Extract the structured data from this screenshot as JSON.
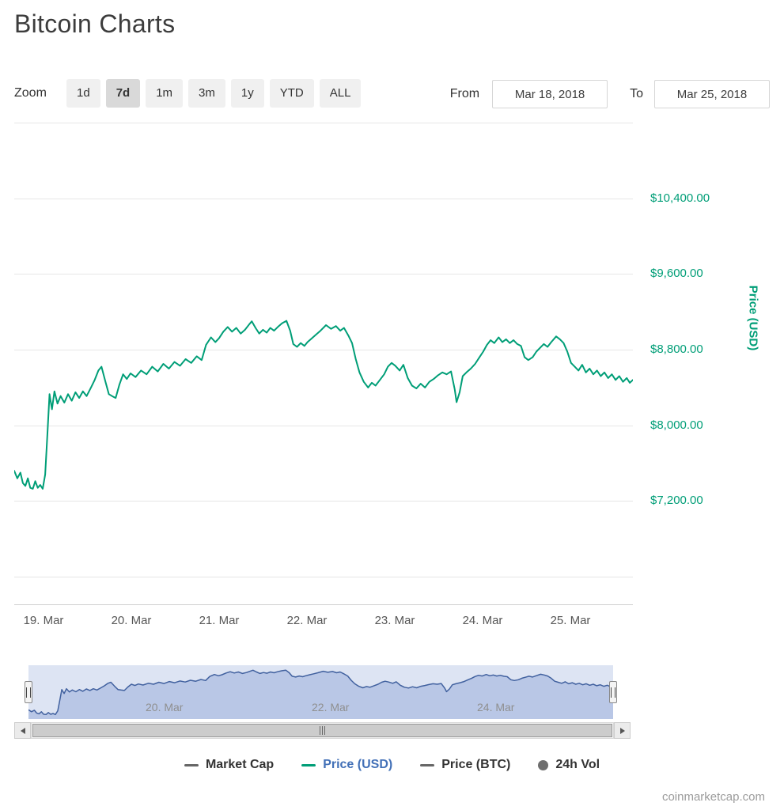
{
  "title": "Bitcoin Charts",
  "range_selector": {
    "zoom_label": "Zoom",
    "buttons": [
      {
        "label": "1d",
        "active": false
      },
      {
        "label": "7d",
        "active": true
      },
      {
        "label": "1m",
        "active": false
      },
      {
        "label": "3m",
        "active": false
      },
      {
        "label": "1y",
        "active": false
      },
      {
        "label": "YTD",
        "active": false
      },
      {
        "label": "ALL",
        "active": false
      }
    ],
    "from_label": "From",
    "from_value": "Mar 18, 2018",
    "to_label": "To",
    "to_value": "Mar 25, 2018"
  },
  "legend": {
    "items": [
      {
        "label": "Market Cap",
        "symbol": "dash",
        "color": "#666666",
        "text_color": "#333333"
      },
      {
        "label": "Price (USD)",
        "symbol": "dash",
        "color": "#009E77",
        "text_color": "#4270b7"
      },
      {
        "label": "Price (BTC)",
        "symbol": "dash",
        "color": "#666666",
        "text_color": "#333333"
      },
      {
        "label": "24h Vol",
        "symbol": "circle",
        "color": "#6e6e6e",
        "text_color": "#333333"
      }
    ]
  },
  "watermark": "coinmarketcap.com",
  "chart_data": {
    "type": "line",
    "title": "Bitcoin Charts",
    "ylabel": "Price (USD)",
    "xlabel": "",
    "legend_position": "bottom",
    "grid": "horizontal",
    "ylim": [
      6100,
      11200
    ],
    "grid_values": [
      6400,
      7200,
      8000,
      8800,
      9600,
      10400,
      11200
    ],
    "yticks": [
      {
        "value": 7200,
        "label": "$7,200.00"
      },
      {
        "value": 8000,
        "label": "$8,000.00"
      },
      {
        "value": 8800,
        "label": "$8,800.00"
      },
      {
        "value": 9600,
        "label": "$9,600.00"
      },
      {
        "value": 10400,
        "label": "$10,400.00"
      }
    ],
    "xticks": [
      {
        "pos": 0.047,
        "label": "19. Mar"
      },
      {
        "pos": 0.189,
        "label": "20. Mar"
      },
      {
        "pos": 0.331,
        "label": "21. Mar"
      },
      {
        "pos": 0.473,
        "label": "22. Mar"
      },
      {
        "pos": 0.615,
        "label": "23. Mar"
      },
      {
        "pos": 0.757,
        "label": "24. Mar"
      },
      {
        "pos": 0.899,
        "label": "25. Mar"
      }
    ],
    "series": [
      {
        "name": "Price (USD)",
        "color": "#009E77",
        "points": [
          [
            0.0,
            7520
          ],
          [
            0.005,
            7440
          ],
          [
            0.01,
            7500
          ],
          [
            0.014,
            7390
          ],
          [
            0.018,
            7360
          ],
          [
            0.022,
            7440
          ],
          [
            0.026,
            7340
          ],
          [
            0.03,
            7330
          ],
          [
            0.034,
            7410
          ],
          [
            0.038,
            7340
          ],
          [
            0.042,
            7370
          ],
          [
            0.046,
            7330
          ],
          [
            0.05,
            7480
          ],
          [
            0.054,
            7950
          ],
          [
            0.057,
            8330
          ],
          [
            0.061,
            8170
          ],
          [
            0.065,
            8360
          ],
          [
            0.07,
            8230
          ],
          [
            0.075,
            8310
          ],
          [
            0.081,
            8240
          ],
          [
            0.087,
            8330
          ],
          [
            0.093,
            8260
          ],
          [
            0.099,
            8350
          ],
          [
            0.105,
            8290
          ],
          [
            0.111,
            8360
          ],
          [
            0.117,
            8310
          ],
          [
            0.124,
            8400
          ],
          [
            0.13,
            8480
          ],
          [
            0.136,
            8580
          ],
          [
            0.141,
            8620
          ],
          [
            0.147,
            8470
          ],
          [
            0.153,
            8330
          ],
          [
            0.158,
            8310
          ],
          [
            0.164,
            8290
          ],
          [
            0.17,
            8430
          ],
          [
            0.176,
            8540
          ],
          [
            0.182,
            8490
          ],
          [
            0.188,
            8550
          ],
          [
            0.196,
            8510
          ],
          [
            0.205,
            8580
          ],
          [
            0.214,
            8540
          ],
          [
            0.223,
            8620
          ],
          [
            0.232,
            8570
          ],
          [
            0.241,
            8650
          ],
          [
            0.25,
            8600
          ],
          [
            0.259,
            8670
          ],
          [
            0.268,
            8630
          ],
          [
            0.277,
            8700
          ],
          [
            0.286,
            8660
          ],
          [
            0.295,
            8730
          ],
          [
            0.303,
            8690
          ],
          [
            0.31,
            8850
          ],
          [
            0.318,
            8930
          ],
          [
            0.325,
            8880
          ],
          [
            0.331,
            8920
          ],
          [
            0.338,
            8990
          ],
          [
            0.345,
            9040
          ],
          [
            0.352,
            8990
          ],
          [
            0.359,
            9030
          ],
          [
            0.366,
            8970
          ],
          [
            0.373,
            9010
          ],
          [
            0.38,
            9070
          ],
          [
            0.384,
            9100
          ],
          [
            0.39,
            9030
          ],
          [
            0.396,
            8970
          ],
          [
            0.402,
            9010
          ],
          [
            0.408,
            8980
          ],
          [
            0.414,
            9030
          ],
          [
            0.42,
            9000
          ],
          [
            0.426,
            9040
          ],
          [
            0.433,
            9080
          ],
          [
            0.44,
            9105
          ],
          [
            0.446,
            9000
          ],
          [
            0.451,
            8860
          ],
          [
            0.457,
            8830
          ],
          [
            0.463,
            8870
          ],
          [
            0.469,
            8840
          ],
          [
            0.474,
            8880
          ],
          [
            0.481,
            8920
          ],
          [
            0.488,
            8960
          ],
          [
            0.495,
            9000
          ],
          [
            0.504,
            9060
          ],
          [
            0.512,
            9020
          ],
          [
            0.52,
            9050
          ],
          [
            0.527,
            9000
          ],
          [
            0.533,
            9030
          ],
          [
            0.54,
            8950
          ],
          [
            0.546,
            8870
          ],
          [
            0.552,
            8700
          ],
          [
            0.558,
            8560
          ],
          [
            0.565,
            8460
          ],
          [
            0.572,
            8400
          ],
          [
            0.578,
            8450
          ],
          [
            0.584,
            8420
          ],
          [
            0.591,
            8480
          ],
          [
            0.598,
            8540
          ],
          [
            0.604,
            8620
          ],
          [
            0.61,
            8660
          ],
          [
            0.616,
            8630
          ],
          [
            0.623,
            8580
          ],
          [
            0.629,
            8640
          ],
          [
            0.636,
            8500
          ],
          [
            0.643,
            8420
          ],
          [
            0.65,
            8390
          ],
          [
            0.657,
            8440
          ],
          [
            0.664,
            8400
          ],
          [
            0.671,
            8460
          ],
          [
            0.678,
            8490
          ],
          [
            0.685,
            8530
          ],
          [
            0.692,
            8560
          ],
          [
            0.699,
            8540
          ],
          [
            0.706,
            8570
          ],
          [
            0.712,
            8380
          ],
          [
            0.715,
            8245
          ],
          [
            0.72,
            8350
          ],
          [
            0.725,
            8520
          ],
          [
            0.731,
            8560
          ],
          [
            0.738,
            8600
          ],
          [
            0.745,
            8650
          ],
          [
            0.752,
            8720
          ],
          [
            0.758,
            8780
          ],
          [
            0.764,
            8850
          ],
          [
            0.77,
            8900
          ],
          [
            0.776,
            8870
          ],
          [
            0.783,
            8930
          ],
          [
            0.789,
            8880
          ],
          [
            0.795,
            8910
          ],
          [
            0.801,
            8870
          ],
          [
            0.807,
            8900
          ],
          [
            0.813,
            8860
          ],
          [
            0.819,
            8840
          ],
          [
            0.825,
            8720
          ],
          [
            0.831,
            8690
          ],
          [
            0.838,
            8720
          ],
          [
            0.844,
            8780
          ],
          [
            0.85,
            8820
          ],
          [
            0.856,
            8860
          ],
          [
            0.862,
            8830
          ],
          [
            0.868,
            8880
          ],
          [
            0.876,
            8940
          ],
          [
            0.882,
            8910
          ],
          [
            0.888,
            8870
          ],
          [
            0.894,
            8780
          ],
          [
            0.9,
            8660
          ],
          [
            0.906,
            8620
          ],
          [
            0.912,
            8580
          ],
          [
            0.918,
            8640
          ],
          [
            0.924,
            8560
          ],
          [
            0.93,
            8600
          ],
          [
            0.936,
            8540
          ],
          [
            0.942,
            8580
          ],
          [
            0.948,
            8520
          ],
          [
            0.954,
            8560
          ],
          [
            0.96,
            8500
          ],
          [
            0.966,
            8540
          ],
          [
            0.972,
            8480
          ],
          [
            0.978,
            8520
          ],
          [
            0.984,
            8460
          ],
          [
            0.99,
            8500
          ],
          [
            0.995,
            8450
          ],
          [
            1.0,
            8480
          ]
        ]
      }
    ],
    "navigator": {
      "line_color": "#41619f",
      "area_fill": "#b9c7e6",
      "mask_fill": "#dde4f3",
      "ylim": [
        7150,
        9300
      ],
      "ticks": [
        {
          "pos": 0.189,
          "label": "20. Mar"
        },
        {
          "pos": 0.473,
          "label": "22. Mar"
        },
        {
          "pos": 0.757,
          "label": "24. Mar"
        }
      ]
    }
  }
}
